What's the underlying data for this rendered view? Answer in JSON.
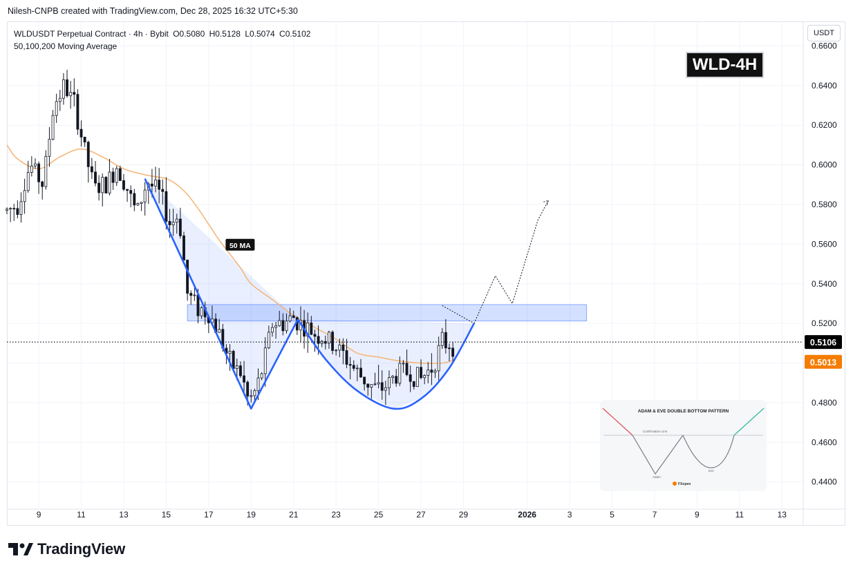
{
  "header": {
    "attribution": "Nilesh-CNPB created with TradingView.com, Dec 28, 2025 16:32 UTC+5:30"
  },
  "legend": {
    "symbol": "WLDUSDT Perpetual Contract · 4h · Bybit",
    "open": "O0.5080",
    "high": "H0.5128",
    "low": "L0.5074",
    "close": "C0.5102",
    "indicator": "50,100,200 Moving Average"
  },
  "unit_button": "USDT",
  "badge": "WLD-4H",
  "ma_label": "50 MA",
  "brand": "TradingView",
  "colors": {
    "up": "#131722",
    "down": "#131722",
    "ma": "#f5b77a",
    "pattern": "#2962ff",
    "zone": "#2962ff",
    "price_label": "#000000",
    "ma_label_bg": "#f57c00"
  },
  "inset": {
    "title": "ADAM & EVE DOUBLE BOTTOM PATTERN",
    "confirmation": "Confirmation Line",
    "adam": "Adam",
    "eve": "Eve",
    "logo": "FXopen"
  },
  "chart_data": {
    "type": "candlestick",
    "timeframe": "4h",
    "y_axis": {
      "ticks": [
        0.44,
        0.46,
        0.48,
        0.5,
        0.52,
        0.54,
        0.56,
        0.58,
        0.6,
        0.62,
        0.64,
        0.66
      ],
      "tick_labels": [
        "0.4400",
        "0.4600",
        "0.4800",
        "0.5000",
        "0.5200",
        "0.5400",
        "0.5600",
        "0.5800",
        "0.6000",
        "0.6200",
        "0.6400",
        "0.6600"
      ],
      "range": [
        0.427,
        0.672
      ],
      "position": "right"
    },
    "x_axis": {
      "range_days": [
        7.5,
        45.0
      ],
      "ticks": [
        {
          "day": 9,
          "label": "9"
        },
        {
          "day": 11,
          "label": "11"
        },
        {
          "day": 13,
          "label": "13"
        },
        {
          "day": 15,
          "label": "15"
        },
        {
          "day": 17,
          "label": "17"
        },
        {
          "day": 19,
          "label": "19"
        },
        {
          "day": 21,
          "label": "21"
        },
        {
          "day": 23,
          "label": "23"
        },
        {
          "day": 25,
          "label": "25"
        },
        {
          "day": 27,
          "label": "27"
        },
        {
          "day": 29,
          "label": "29"
        },
        {
          "day": 32,
          "label": "2026",
          "bold": true
        },
        {
          "day": 34,
          "label": "3"
        },
        {
          "day": 36,
          "label": "5"
        },
        {
          "day": 38,
          "label": "7"
        },
        {
          "day": 40,
          "label": "9"
        },
        {
          "day": 42,
          "label": "11"
        },
        {
          "day": 44,
          "label": "13"
        }
      ]
    },
    "keypoints": [
      [
        7.5,
        0.577
      ],
      [
        8.0,
        0.58
      ],
      [
        8.6,
        0.6
      ],
      [
        9.2,
        0.59
      ],
      [
        9.7,
        0.63
      ],
      [
        10.2,
        0.64
      ],
      [
        10.7,
        0.63
      ],
      [
        11.1,
        0.61
      ],
      [
        11.6,
        0.588
      ],
      [
        12.2,
        0.59
      ],
      [
        12.7,
        0.6
      ],
      [
        13.1,
        0.59
      ],
      [
        13.6,
        0.575
      ],
      [
        14.1,
        0.592
      ],
      [
        14.7,
        0.585
      ],
      [
        15.2,
        0.57
      ],
      [
        15.6,
        0.575
      ],
      [
        16.0,
        0.535
      ],
      [
        16.5,
        0.528
      ],
      [
        17.0,
        0.525
      ],
      [
        17.5,
        0.515
      ],
      [
        18.0,
        0.5
      ],
      [
        18.5,
        0.495
      ],
      [
        18.9,
        0.48
      ],
      [
        19.3,
        0.488
      ],
      [
        19.6,
        0.5
      ],
      [
        20.0,
        0.52
      ],
      [
        20.5,
        0.52
      ],
      [
        21.0,
        0.523
      ],
      [
        21.5,
        0.518
      ],
      [
        22.0,
        0.515
      ],
      [
        22.5,
        0.512
      ],
      [
        23.0,
        0.508
      ],
      [
        23.5,
        0.502
      ],
      [
        24.0,
        0.495
      ],
      [
        24.5,
        0.49
      ],
      [
        25.0,
        0.486
      ],
      [
        25.5,
        0.49
      ],
      [
        26.0,
        0.496
      ],
      [
        26.5,
        0.495
      ],
      [
        27.0,
        0.492
      ],
      [
        27.5,
        0.498
      ],
      [
        28.0,
        0.51
      ],
      [
        28.5,
        0.5102
      ]
    ],
    "moving_average_50": [
      [
        7.5,
        0.61
      ],
      [
        8.0,
        0.603
      ],
      [
        9.0,
        0.598
      ],
      [
        10.0,
        0.604
      ],
      [
        11.0,
        0.608
      ],
      [
        12.0,
        0.604
      ],
      [
        13.0,
        0.598
      ],
      [
        14.0,
        0.595
      ],
      [
        14.5,
        0.594
      ],
      [
        15.0,
        0.593
      ],
      [
        15.5,
        0.59
      ],
      [
        16.0,
        0.585
      ],
      [
        16.5,
        0.578
      ],
      [
        17.0,
        0.57
      ],
      [
        17.5,
        0.562
      ],
      [
        18.0,
        0.555
      ],
      [
        18.5,
        0.548
      ],
      [
        19.0,
        0.54
      ],
      [
        20.0,
        0.532
      ],
      [
        21.0,
        0.524
      ],
      [
        22.0,
        0.518
      ],
      [
        23.0,
        0.512
      ],
      [
        24.0,
        0.505
      ],
      [
        25.0,
        0.503
      ],
      [
        26.0,
        0.501
      ],
      [
        27.0,
        0.5
      ],
      [
        28.0,
        0.5
      ],
      [
        28.5,
        0.5013
      ]
    ],
    "last_price": {
      "value": 0.5106,
      "label": "0.5106",
      "color": "#000000"
    },
    "ma_price": {
      "value": 0.5013,
      "label": "0.5013",
      "color": "#f57c00"
    },
    "resistance_zone": {
      "start_day": 16.0,
      "end_day": 34.8,
      "top": 0.5295,
      "bottom": 0.5212
    },
    "pattern_adam": [
      [
        14.0,
        0.593
      ],
      [
        19.0,
        0.477
      ],
      [
        21.2,
        0.522
      ]
    ],
    "pattern_eve": [
      [
        21.2,
        0.522
      ],
      [
        22.5,
        0.502
      ],
      [
        24.0,
        0.486
      ],
      [
        25.7,
        0.477
      ],
      [
        27.0,
        0.482
      ],
      [
        28.3,
        0.497
      ],
      [
        29.5,
        0.52
      ]
    ],
    "projection": [
      [
        29.5,
        0.52
      ],
      [
        30.5,
        0.544
      ],
      [
        31.3,
        0.53
      ],
      [
        32.5,
        0.572
      ],
      [
        33.0,
        0.582
      ]
    ],
    "projection_start": [
      [
        28.0,
        0.529
      ],
      [
        29.5,
        0.52
      ]
    ]
  }
}
